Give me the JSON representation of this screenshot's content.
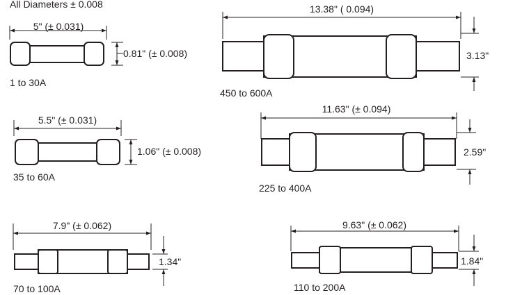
{
  "header": {
    "note": "All Diameters ± 0.008"
  },
  "fuses": [
    {
      "range": "1 to 30A",
      "length": "5\" (± 0.031)",
      "diameter": "0.81\" (± 0.008)"
    },
    {
      "range": "35 to 60A",
      "length": "5.5\" (± 0.031)",
      "diameter": "1.06\" (± 0.008)"
    },
    {
      "range": "70 to 100A",
      "length": "7.9\" (± 0.062)",
      "diameter": "1.34\""
    },
    {
      "range": "450 to 600A",
      "length": "13.38\" ( 0.094)",
      "diameter": "3.13\""
    },
    {
      "range": "225 to 400A",
      "length": "11.63\" (± 0.094)",
      "diameter": "2.59\""
    },
    {
      "range": "110 to 200A",
      "length": "9.63\" (± 0.062)",
      "diameter": "1.84\""
    }
  ],
  "colors": {
    "ink": "#231f20",
    "background": "#ffffff"
  }
}
